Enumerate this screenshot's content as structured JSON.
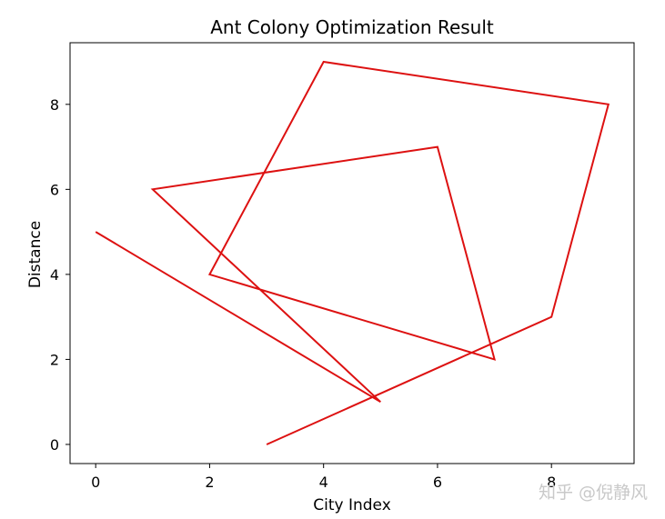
{
  "chart_data": {
    "type": "line",
    "title": "Ant Colony Optimization Result",
    "xlabel": "City Index",
    "ylabel": "Distance",
    "xlim": [
      -0.45,
      9.45
    ],
    "ylim": [
      -0.45,
      9.45
    ],
    "xticks": [
      0,
      2,
      4,
      6,
      8
    ],
    "yticks": [
      0,
      2,
      4,
      6,
      8
    ],
    "grid": false,
    "series": [
      {
        "color": "#dd1111",
        "x": [
          0,
          5,
          1,
          6,
          7,
          2,
          4,
          9,
          8,
          3
        ],
        "y": [
          5,
          1,
          6,
          7,
          2,
          4,
          9,
          8,
          3,
          0
        ]
      }
    ]
  },
  "watermark": "知乎 @倪静风"
}
